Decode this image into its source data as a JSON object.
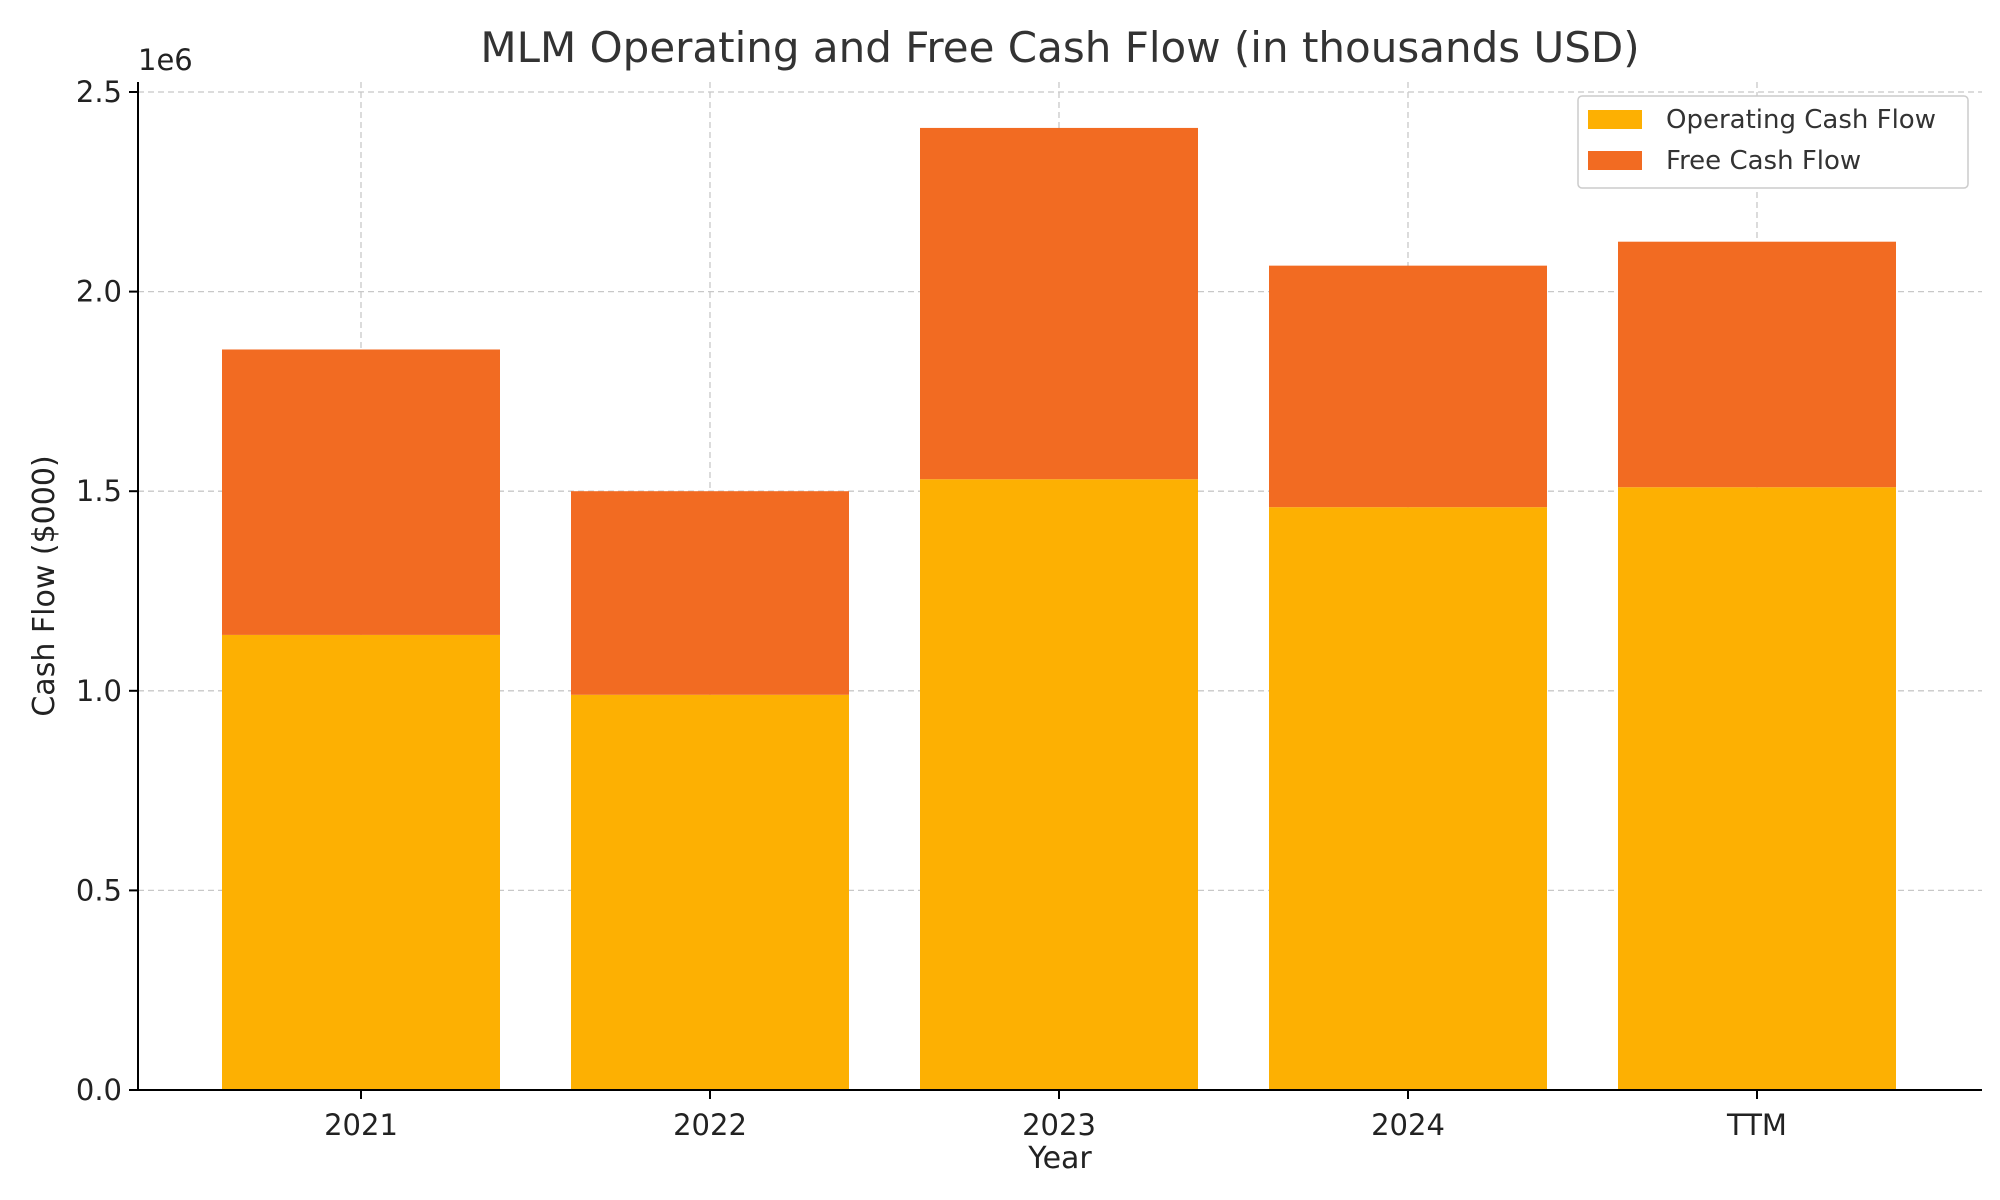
{
  "chart_data": {
    "type": "bar",
    "stacked": true,
    "title": "MLM Operating and Free Cash Flow (in thousands USD)",
    "xlabel": "Year",
    "ylabel": "Cash Flow ($000)",
    "y_offset_label": "1e6",
    "categories": [
      "2021",
      "2022",
      "2023",
      "2024",
      "TTM"
    ],
    "ylim": [
      0,
      2500000
    ],
    "yticks": [
      0,
      500000,
      1000000,
      1500000,
      2000000,
      2500000
    ],
    "ytick_labels": [
      "0.0",
      "0.5",
      "1.0",
      "1.5",
      "2.0",
      "2.5"
    ],
    "grid": true,
    "legend_position": "top-right",
    "series": [
      {
        "name": "Operating Cash Flow",
        "color": "#FDB002",
        "values": [
          1140000,
          990000,
          1530000,
          1460000,
          1510000
        ]
      },
      {
        "name": "Free Cash Flow",
        "color": "#F26B22",
        "values": [
          715000,
          510000,
          880000,
          605000,
          615000
        ]
      }
    ]
  }
}
